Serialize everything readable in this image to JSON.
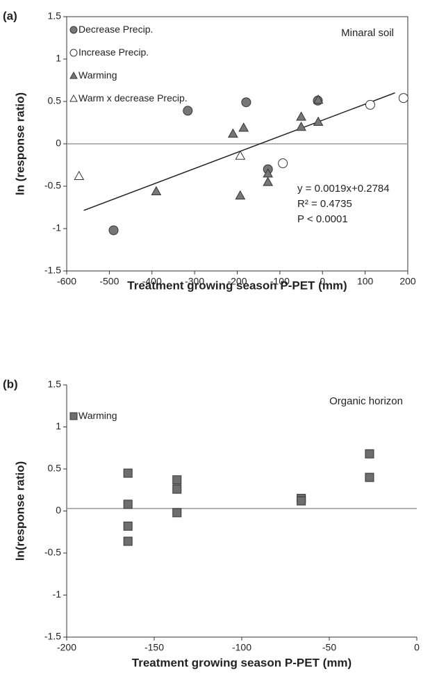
{
  "charts": [
    {
      "type": "scatter",
      "panel_label": "(a)",
      "annotation": "Minaral soil",
      "xlabel": "Treatment growing season P-PET (mm)",
      "ylabel": "ln (response ratio)",
      "xlim": [
        -600,
        200
      ],
      "xticks": [
        -600,
        -500,
        -400,
        -300,
        -200,
        -100,
        0,
        100,
        200
      ],
      "ylim": [
        -1.5,
        1.5
      ],
      "yticks": [
        -1.5,
        -1,
        -0.5,
        0,
        0.5,
        1,
        1.5
      ],
      "frame": true,
      "legend": "upper left",
      "reference_line": 0,
      "series": [
        {
          "name": "Decrease Precip.",
          "marker": "circle",
          "color": "#777777",
          "x": [
            -490,
            -316,
            -179,
            -128,
            -11
          ],
          "values": [
            -1.02,
            0.39,
            0.49,
            -0.3,
            0.51
          ]
        },
        {
          "name": "Increase Precip.",
          "marker": "circle",
          "color": "#ffffff",
          "x": [
            -93,
            112,
            190
          ],
          "values": [
            -0.23,
            0.46,
            0.54
          ]
        },
        {
          "name": "Warming",
          "marker": "triangle",
          "color": "#777777",
          "x": [
            -390,
            -210,
            -185,
            -193,
            -128,
            -128,
            -50,
            -50,
            -10,
            -10
          ],
          "values": [
            -0.56,
            0.12,
            0.19,
            -0.61,
            -0.35,
            -0.45,
            0.32,
            0.2,
            0.26,
            0.52
          ]
        },
        {
          "name": "Warm x decrease Precip.",
          "marker": "triangle",
          "color": "#ffffff",
          "x": [
            -571,
            -193
          ],
          "values": [
            -0.38,
            -0.14
          ]
        }
      ],
      "fit": {
        "slope": 0.0019,
        "intercept": 0.2784,
        "x": [
          -560,
          170
        ]
      },
      "fit_labels": [
        "y = 0.0019x+0.2784",
        "R² = 0.4735",
        "P < 0.0001"
      ]
    },
    {
      "type": "scatter",
      "panel_label": "(b)",
      "annotation": "Organic horizon",
      "xlabel": "Treatment growing season P-PET (mm)",
      "ylabel": "ln(response ratio)",
      "xlim": [
        -200,
        0
      ],
      "xticks": [
        -200,
        -150,
        -100,
        -50,
        0
      ],
      "ylim": [
        -1.5,
        1.5
      ],
      "yticks": [
        -1.5,
        -1,
        -0.5,
        0,
        0.5,
        1,
        1.5
      ],
      "frame": false,
      "legend": "upper left",
      "reference_line": 0.03,
      "series": [
        {
          "name": "Warming",
          "marker": "square",
          "color": "#6e6e6e",
          "x": [
            -165,
            -165,
            -165,
            -165,
            -137,
            -137,
            -137,
            -66,
            -66,
            -27,
            -27
          ],
          "values": [
            0.45,
            0.08,
            -0.18,
            -0.36,
            0.37,
            0.26,
            -0.02,
            0.15,
            0.12,
            0.68,
            0.4
          ]
        }
      ]
    }
  ]
}
